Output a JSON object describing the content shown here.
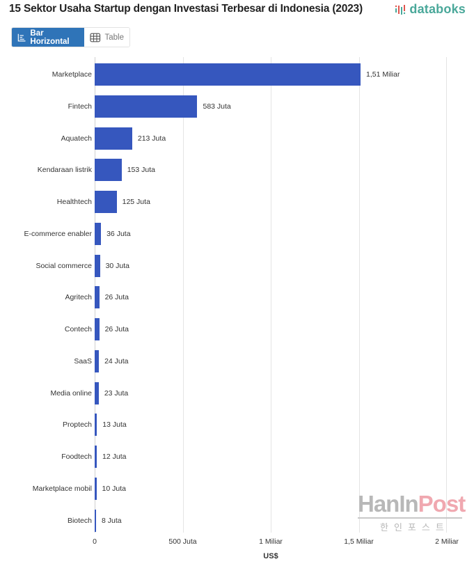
{
  "header": {
    "title": "15 Sektor Usaha Startup dengan Investasi Terbesar di Indonesia (2023)",
    "brand": "databoks"
  },
  "view_toggle": {
    "options": [
      {
        "label": "Bar Horizontal",
        "icon": "bar-chart-icon",
        "active": true
      },
      {
        "label": "Table",
        "icon": "table-grid-icon",
        "active": false
      }
    ]
  },
  "watermark": {
    "main_gray": "HanIn",
    "main_pink": "Post",
    "sub": "한인포스트"
  },
  "colors": {
    "bar": "#3657be",
    "toggle_active": "#2f74b8",
    "brand": "#4aa89a"
  },
  "chart_data": {
    "type": "bar",
    "orientation": "horizontal",
    "title": "15 Sektor Usaha Startup dengan Investasi Terbesar di Indonesia (2023)",
    "xlabel": "US$",
    "ylabel": "",
    "unit": "Juta US$",
    "xlim": [
      0,
      2000
    ],
    "xticks": [
      {
        "value": 0,
        "label": "0"
      },
      {
        "value": 500,
        "label": "500 Juta"
      },
      {
        "value": 1000,
        "label": "1 Miliar"
      },
      {
        "value": 1500,
        "label": "1,5 Miliar"
      },
      {
        "value": 2000,
        "label": "2 Miliar"
      }
    ],
    "grid": true,
    "legend": "none",
    "categories": [
      "Marketplace",
      "Fintech",
      "Aquatech",
      "Kendaraan listrik",
      "Healthtech",
      "E-commerce enabler",
      "Social commerce",
      "Agritech",
      "Contech",
      "SaaS",
      "Media online",
      "Proptech",
      "Foodtech",
      "Marketplace mobil",
      "Biotech"
    ],
    "values": [
      1510,
      583,
      213,
      153,
      125,
      36,
      30,
      26,
      26,
      24,
      23,
      13,
      12,
      10,
      8
    ],
    "value_labels": [
      "1,51 Miliar",
      "583 Juta",
      "213 Juta",
      "153 Juta",
      "125 Juta",
      "36 Juta",
      "30 Juta",
      "26 Juta",
      "26 Juta",
      "24 Juta",
      "23 Juta",
      "13 Juta",
      "12 Juta",
      "10 Juta",
      "8 Juta"
    ]
  }
}
